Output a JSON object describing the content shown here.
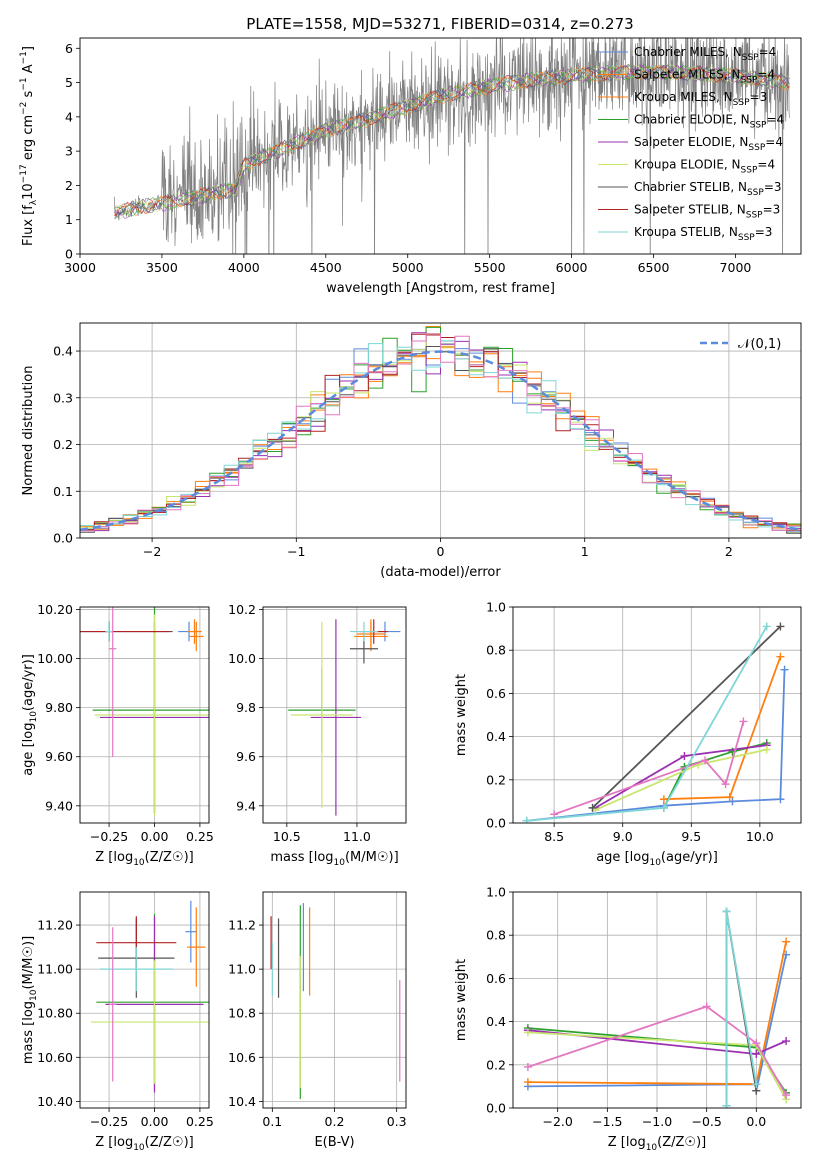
{
  "figure_title": "PLATE=1558, MJD=53271, FIBERID=0314, z=0.273",
  "series_styles": [
    {
      "name": "Chabrier MILES",
      "nssp": "4",
      "color": "#1f77b4"
    },
    {
      "name": "Salpeter MILES",
      "nssp": "4",
      "color": "#ff7f0e"
    },
    {
      "name": "Kroupa MILES",
      "nssp": "3",
      "color": "#ff7f0e"
    },
    {
      "name": "Chabrier ELODIE",
      "nssp": "4",
      "color": "#2ca02c"
    },
    {
      "name": "Salpeter ELODIE",
      "nssp": "4",
      "color": "#9b30b0"
    },
    {
      "name": "Kroupa ELODIE",
      "nssp": "4",
      "color": "#e0e040"
    },
    {
      "name": "Chabrier STELIB",
      "nssp": "3",
      "color": "#555555"
    },
    {
      "name": "Salpeter STELIB",
      "nssp": "3",
      "color": "#b22222"
    },
    {
      "name": "Kroupa STELIB",
      "nssp": "3",
      "color": "#7fd6d6"
    }
  ],
  "chart_data": [
    {
      "id": "spectrum",
      "type": "line",
      "xlabel": "wavelength [Angstrom, rest frame]",
      "ylabel": "Flux [f_λ 10^-17 erg cm^-2 s^-1 A^-1]",
      "xlim": [
        3000,
        7400
      ],
      "ylim": [
        0,
        6.3
      ],
      "xticks": [
        3000,
        3500,
        4000,
        4500,
        5000,
        5500,
        6000,
        6500,
        7000
      ],
      "yticks": [
        0,
        1,
        2,
        3,
        4,
        5,
        6
      ],
      "data_color": "#808080",
      "data_x_range": [
        3210,
        7330
      ],
      "model_continuum": {
        "x": [
          3210,
          3400,
          3600,
          3800,
          3950,
          4000,
          4200,
          4500,
          4800,
          5000,
          5200,
          5500,
          5800,
          6000,
          6300,
          6600,
          7000,
          7330
        ],
        "y": [
          1.2,
          1.4,
          1.55,
          1.75,
          1.9,
          2.6,
          3.0,
          3.6,
          4.0,
          4.3,
          4.6,
          4.9,
          5.1,
          5.2,
          5.3,
          5.3,
          5.2,
          5.0
        ]
      },
      "legend_position": "upper-right",
      "grid": false
    },
    {
      "id": "residuals",
      "type": "histogram",
      "xlabel": "(data-model)/error",
      "ylabel": "Normed distribution",
      "xlim": [
        -2.5,
        2.5
      ],
      "ylim": [
        0,
        0.46
      ],
      "xticks": [
        -2,
        -1,
        0,
        1,
        2
      ],
      "yticks": [
        0.0,
        0.1,
        0.2,
        0.3,
        0.4
      ],
      "bin_width": 0.1,
      "reference_curve": {
        "label": "𝒩(0,1)",
        "mean": 0,
        "sigma": 1,
        "color": "#5b8bdc",
        "style": "dashed"
      },
      "legend_position": "upper-right",
      "grid": true
    },
    {
      "id": "age-vs-Z",
      "type": "errorbar",
      "xlabel": "Z [log10(Z/Z☉)]",
      "ylabel": "age  [log10(age/yr)]",
      "xlim": [
        -0.41,
        0.3
      ],
      "ylim": [
        9.33,
        10.21
      ],
      "xticks": [
        -0.25,
        0.0,
        0.25
      ],
      "yticks": [
        9.4,
        9.6,
        9.8,
        10.0,
        10.2
      ],
      "points": [
        {
          "s": 0,
          "x": 0.19,
          "y": 10.11,
          "xerr": 0.06,
          "yerr": 0.04
        },
        {
          "s": 1,
          "x": 0.23,
          "y": 10.09,
          "xerr": 0.04,
          "yerr": 0.06
        },
        {
          "s": 2,
          "x": 0.22,
          "y": 10.11,
          "xerr": 0.04,
          "yerr": 0.05
        },
        {
          "s": 3,
          "x": 0.0,
          "y": 9.79,
          "xerr": 0.34,
          "yerr": 0.42
        },
        {
          "s": 4,
          "x": 0.0,
          "y": 9.76,
          "xerr": 0.3,
          "yerr": 0.39
        },
        {
          "s": 5,
          "x": 0.0,
          "y": 9.77,
          "xerr": 0.33,
          "yerr": 0.41
        },
        {
          "s": 6,
          "x": -0.25,
          "y": 10.11,
          "xerr": 0.35,
          "yerr": 0.04
        },
        {
          "s": 7,
          "x": -0.25,
          "y": 10.11,
          "xerr": 0.33,
          "yerr": 0.04
        },
        {
          "s": 8,
          "x": -0.25,
          "y": 10.11,
          "xerr": 0.02,
          "yerr": 0.04
        },
        {
          "s": 9,
          "x": -0.23,
          "y": 10.04,
          "xerr": 0.02,
          "yerr": 0.44
        }
      ]
    },
    {
      "id": "age-vs-mass",
      "type": "errorbar",
      "xlabel": "mass [log10(M/M☉)]",
      "ylabel": "",
      "xlim": [
        10.33,
        11.35
      ],
      "ylim": [
        9.33,
        10.21
      ],
      "xticks": [
        10.5,
        11.0
      ],
      "yticks": [
        9.4,
        9.6,
        9.8,
        10.0,
        10.2
      ],
      "points": [
        {
          "s": 0,
          "x": 11.2,
          "y": 10.11,
          "xerr": 0.11,
          "yerr": 0.04
        },
        {
          "s": 1,
          "x": 11.1,
          "y": 10.09,
          "xerr": 0.12,
          "yerr": 0.06
        },
        {
          "s": 2,
          "x": 11.1,
          "y": 10.1,
          "xerr": 0.1,
          "yerr": 0.06
        },
        {
          "s": 3,
          "x": 10.75,
          "y": 9.79,
          "xerr": 0.24,
          "yerr": 0.17
        },
        {
          "s": 4,
          "x": 10.85,
          "y": 9.76,
          "xerr": 0.18,
          "yerr": 0.4
        },
        {
          "s": 5,
          "x": 10.75,
          "y": 9.77,
          "xerr": 0.22,
          "yerr": 0.38
        },
        {
          "s": 6,
          "x": 11.05,
          "y": 10.04,
          "xerr": 0.1,
          "yerr": 0.06
        },
        {
          "s": 7,
          "x": 11.12,
          "y": 10.11,
          "xerr": 0.1,
          "yerr": 0.05
        },
        {
          "s": 8,
          "x": 11.05,
          "y": 10.11,
          "xerr": 0.1,
          "yerr": 0.04
        }
      ]
    },
    {
      "id": "weight-vs-age",
      "type": "line",
      "xlabel": "age  [log10(age/yr)]",
      "ylabel": "mass weight",
      "xlim": [
        8.2,
        10.3
      ],
      "ylim": [
        0,
        1.0
      ],
      "xticks": [
        8.5,
        9.0,
        9.5,
        10.0
      ],
      "yticks": [
        0.0,
        0.2,
        0.4,
        0.6,
        0.8,
        1.0
      ],
      "grid": true,
      "lines": [
        {
          "s": 0,
          "x": [
            8.3,
            9.3,
            9.8,
            10.15,
            10.18
          ],
          "y": [
            0.01,
            0.08,
            0.1,
            0.11,
            0.71
          ]
        },
        {
          "s": 1,
          "x": [
            9.3,
            9.78,
            10.15
          ],
          "y": [
            0.11,
            0.12,
            0.77
          ]
        },
        {
          "s": 3,
          "x": [
            9.3,
            9.45,
            9.8,
            10.05
          ],
          "y": [
            0.07,
            0.26,
            0.33,
            0.37
          ]
        },
        {
          "s": 4,
          "x": [
            8.8,
            9.45,
            10.05
          ],
          "y": [
            0.07,
            0.31,
            0.36
          ]
        },
        {
          "s": 5,
          "x": [
            8.8,
            9.55,
            10.05
          ],
          "y": [
            0.06,
            0.27,
            0.34
          ]
        },
        {
          "s": 6,
          "x": [
            8.78,
            10.15
          ],
          "y": [
            0.07,
            0.91
          ]
        },
        {
          "s": 9,
          "x": [
            8.5,
            9.6,
            9.75,
            9.88
          ],
          "y": [
            0.04,
            0.29,
            0.18,
            0.47
          ]
        },
        {
          "s": 8,
          "x": [
            8.3,
            9.3,
            10.05
          ],
          "y": [
            0.01,
            0.07,
            0.91
          ]
        }
      ]
    },
    {
      "id": "mass-vs-Z",
      "type": "errorbar",
      "xlabel": "Z [log10(Z/Z☉)]",
      "ylabel": "mass [log10(M/M☉)]",
      "xlim": [
        -0.41,
        0.3
      ],
      "ylim": [
        10.37,
        11.35
      ],
      "xticks": [
        -0.25,
        0.0,
        0.25
      ],
      "yticks": [
        10.4,
        10.6,
        10.8,
        11.0,
        11.2
      ],
      "points": [
        {
          "s": 0,
          "x": 0.2,
          "y": 11.17,
          "xerr": 0.03,
          "yerr": 0.14
        },
        {
          "s": 1,
          "x": 0.23,
          "y": 11.1,
          "xerr": 0.05,
          "yerr": 0.18
        },
        {
          "s": 3,
          "x": 0.0,
          "y": 10.85,
          "xerr": 0.32,
          "yerr": 0.4
        },
        {
          "s": 4,
          "x": 0.0,
          "y": 10.84,
          "xerr": 0.27,
          "yerr": 0.4
        },
        {
          "s": 5,
          "x": 0.0,
          "y": 10.76,
          "xerr": 0.35,
          "yerr": 0.28
        },
        {
          "s": 6,
          "x": -0.1,
          "y": 11.05,
          "xerr": 0.21,
          "yerr": 0.18
        },
        {
          "s": 7,
          "x": -0.1,
          "y": 11.12,
          "xerr": 0.22,
          "yerr": 0.12
        },
        {
          "s": 8,
          "x": -0.1,
          "y": 11.0,
          "xerr": 0.2,
          "yerr": 0.1
        },
        {
          "s": 9,
          "x": -0.23,
          "y": 10.84,
          "xerr": 0.02,
          "yerr": 0.35
        }
      ]
    },
    {
      "id": "mass-vs-EBV",
      "type": "errorbar",
      "xlabel": "E(B-V)",
      "ylabel": "",
      "xlim": [
        0.085,
        0.315
      ],
      "ylim": [
        10.37,
        11.35
      ],
      "xticks": [
        0.1,
        0.2,
        0.3
      ],
      "yticks": [
        10.4,
        10.6,
        10.8,
        11.0,
        11.2
      ],
      "points": [
        {
          "s": 0,
          "x": 0.15,
          "y": 11.1,
          "xerr": 0,
          "yerr": 0.2
        },
        {
          "s": 1,
          "x": 0.16,
          "y": 11.08,
          "xerr": 0,
          "yerr": 0.2
        },
        {
          "s": 3,
          "x": 0.145,
          "y": 10.85,
          "xerr": 0,
          "yerr": 0.44
        },
        {
          "s": 5,
          "x": 0.145,
          "y": 10.76,
          "xerr": 0,
          "yerr": 0.3
        },
        {
          "s": 6,
          "x": 0.11,
          "y": 11.05,
          "xerr": 0,
          "yerr": 0.18
        },
        {
          "s": 7,
          "x": 0.098,
          "y": 11.12,
          "xerr": 0,
          "yerr": 0.12
        },
        {
          "s": 8,
          "x": 0.1,
          "y": 11.0,
          "xerr": 0,
          "yerr": 0.12
        },
        {
          "s": 9,
          "x": 0.305,
          "y": 10.72,
          "xerr": 0,
          "yerr": 0.23
        }
      ]
    },
    {
      "id": "weight-vs-Z",
      "type": "line",
      "xlabel": "Z [log10(Z/Z☉)]",
      "ylabel": "mass weight",
      "xlim": [
        -2.45,
        0.45
      ],
      "ylim": [
        0,
        1.0
      ],
      "xticks": [
        -2.0,
        -1.5,
        -1.0,
        -0.5,
        0.0
      ],
      "yticks": [
        0.0,
        0.2,
        0.4,
        0.6,
        0.8,
        1.0
      ],
      "grid": true,
      "lines": [
        {
          "s": 0,
          "x": [
            -2.3,
            0.0,
            0.0,
            0.3
          ],
          "y": [
            0.1,
            0.11,
            0.08,
            0.71
          ]
        },
        {
          "s": 1,
          "x": [
            -2.3,
            0.0,
            0.3
          ],
          "y": [
            0.12,
            0.11,
            0.77
          ]
        },
        {
          "s": 3,
          "x": [
            -2.3,
            0.0,
            0.3
          ],
          "y": [
            0.37,
            0.28,
            0.07
          ]
        },
        {
          "s": 4,
          "x": [
            -2.3,
            0.0,
            0.3
          ],
          "y": [
            0.36,
            0.25,
            0.31
          ]
        },
        {
          "s": 5,
          "x": [
            -2.3,
            0.0,
            0.3
          ],
          "y": [
            0.35,
            0.29,
            0.04
          ]
        },
        {
          "s": 6,
          "x": [
            -0.3,
            -0.3,
            0.0
          ],
          "y": [
            0.01,
            0.91,
            0.08
          ]
        },
        {
          "s": 9,
          "x": [
            -2.3,
            -0.5,
            0.0,
            0.3
          ],
          "y": [
            0.19,
            0.47,
            0.3,
            0.06
          ]
        },
        {
          "s": 8,
          "x": [
            -0.3,
            -0.3,
            0.0
          ],
          "y": [
            0.01,
            0.91,
            0.11
          ]
        }
      ]
    }
  ]
}
